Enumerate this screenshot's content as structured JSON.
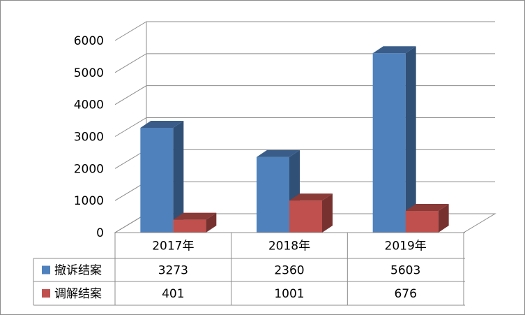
{
  "chart_data": {
    "type": "bar",
    "categories": [
      "2017年",
      "2018年",
      "2019年"
    ],
    "series": [
      {
        "name": "撤诉结案",
        "values": [
          3273,
          2360,
          5603
        ],
        "color": "#4f81bd"
      },
      {
        "name": "调解结案",
        "values": [
          401,
          1001,
          676
        ],
        "color": "#c0504d"
      }
    ],
    "ylim": [
      0,
      6000
    ],
    "yticks": [
      0,
      1000,
      2000,
      3000,
      4000,
      5000,
      6000
    ],
    "grid": true,
    "legend": "data-table-left",
    "data_table": true,
    "style": "3d-clustered-column"
  }
}
